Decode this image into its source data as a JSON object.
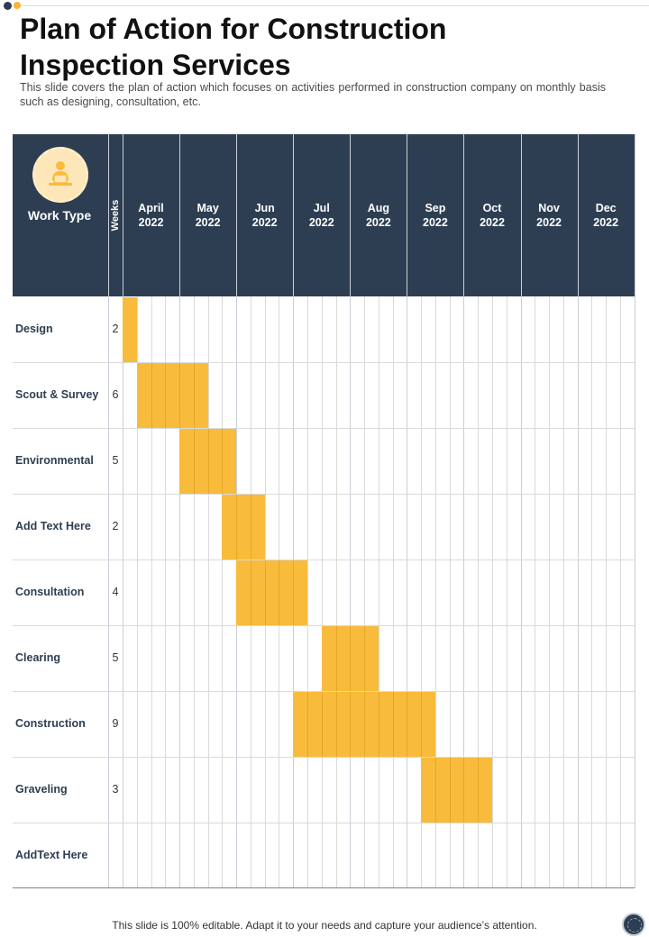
{
  "page": {
    "title": "Plan of Action for Construction Inspection Services",
    "subtitle": "This slide covers the plan of action which focuses on activities performed in construction company on monthly basis such as designing, consultation, etc.",
    "footer": "This slide is 100% editable. Adapt it to your needs and capture your audience’s attention."
  },
  "table": {
    "work_type_header": "Work Type",
    "weeks_header": "Weeks",
    "header_icon": "person-at-laptop-icon",
    "months": [
      {
        "month": "April",
        "year": "2022"
      },
      {
        "month": "May",
        "year": "2022"
      },
      {
        "month": "Jun",
        "year": "2022"
      },
      {
        "month": "Jul",
        "year": "2022"
      },
      {
        "month": "Aug",
        "year": "2022"
      },
      {
        "month": "Sep",
        "year": "2022"
      },
      {
        "month": "Oct",
        "year": "2022"
      },
      {
        "month": "Nov",
        "year": "2022"
      },
      {
        "month": "Dec",
        "year": "2022"
      }
    ],
    "rows": [
      {
        "label": "Design",
        "weeks": "2",
        "start_week": 0,
        "duration": 1
      },
      {
        "label": "Scout & Survey",
        "weeks": "6",
        "start_week": 1,
        "duration": 5
      },
      {
        "label": "Environmental",
        "weeks": "5",
        "start_week": 4,
        "duration": 4
      },
      {
        "label": "Add Text Here",
        "weeks": "2",
        "start_week": 7,
        "duration": 3
      },
      {
        "label": "Consultation",
        "weeks": "4",
        "start_week": 8,
        "duration": 5
      },
      {
        "label": "Clearing",
        "weeks": "5",
        "start_week": 14,
        "duration": 4
      },
      {
        "label": "Construction",
        "weeks": "9",
        "start_week": 12,
        "duration": 10
      },
      {
        "label": "Graveling",
        "weeks": "3",
        "start_week": 21,
        "duration": 5
      },
      {
        "label": "AddText Here",
        "weeks": "",
        "start_week": 0,
        "duration": 0
      }
    ],
    "colors": {
      "header": "#2e3e52",
      "bar": "#f9bb3b",
      "icon_bg": "#fde7b8"
    }
  }
}
